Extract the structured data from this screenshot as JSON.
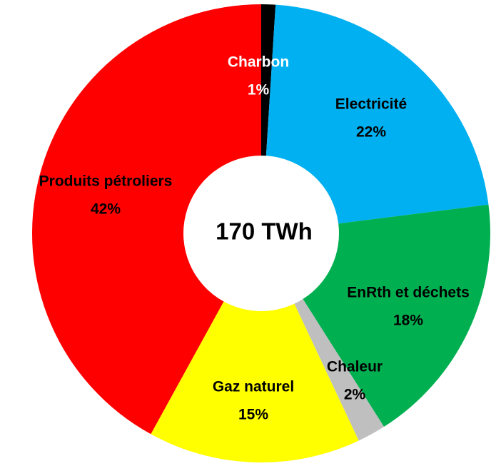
{
  "chart_data": {
    "type": "donut",
    "center_label": "170 TWh",
    "categories": [
      "Charbon",
      "Electricité",
      "EnRth et déchets",
      "Chaleur",
      "Gaz naturel",
      "Produits pétroliers"
    ],
    "values": [
      1,
      22,
      18,
      2,
      15,
      42
    ],
    "value_labels": [
      "1%",
      "22%",
      "18%",
      "2%",
      "15%",
      "42%"
    ],
    "colors": [
      "#000000",
      "#00b0f0",
      "#00b050",
      "#bfbfbf",
      "#ffff00",
      "#ff0000"
    ],
    "label_colors": [
      "#ffffff",
      "#000000",
      "#000000",
      "#000000",
      "#000000",
      "#000000"
    ]
  }
}
